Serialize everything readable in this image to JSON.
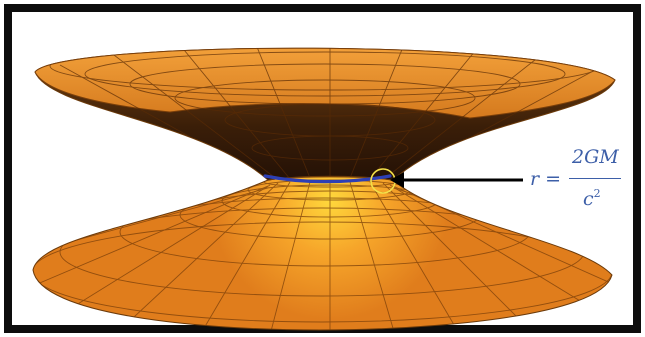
{
  "equation": {
    "lhs": "r =",
    "numerator": "2GM",
    "denominator_base": "c",
    "denominator_exponent": "2"
  },
  "colors": {
    "surface": "#e8891f",
    "surface_light": "#ffc83a",
    "throat_shadow": "#3a1e08",
    "throat_ring": "#2d3fb5",
    "arrow": "#000000",
    "formula": "#3d5fa8",
    "frame": "#0d0d0d"
  }
}
